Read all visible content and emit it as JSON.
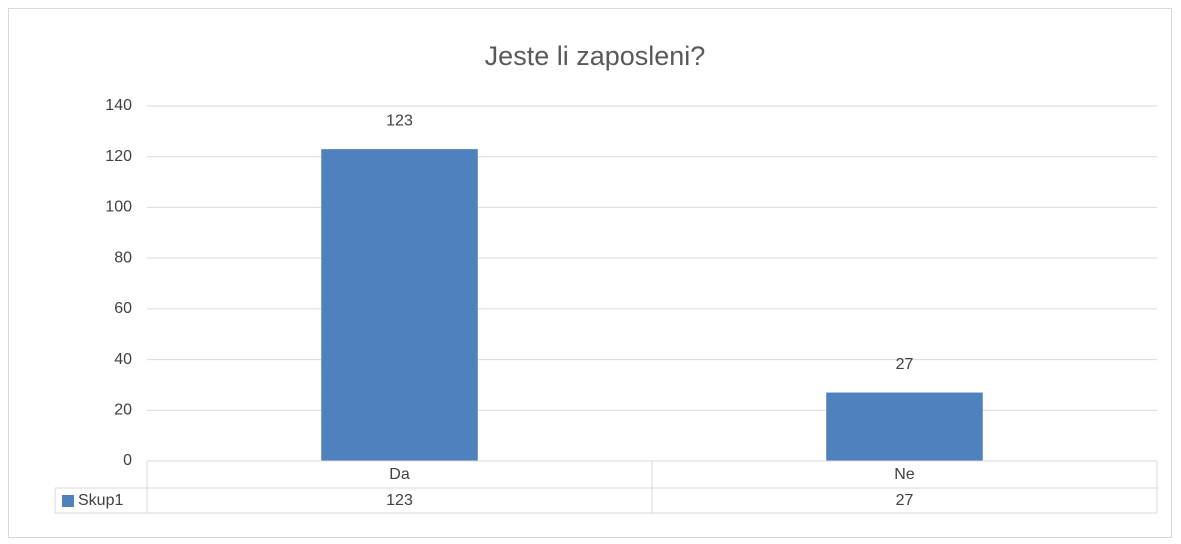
{
  "chart_data": {
    "type": "bar",
    "title": "Jeste li zaposleni?",
    "categories": [
      "Da",
      "Ne"
    ],
    "series": [
      {
        "name": "Skup1",
        "color": "#4f81bd",
        "values": [
          123,
          27
        ]
      }
    ],
    "ylim": [
      0,
      140
    ],
    "yticks": [
      0,
      20,
      40,
      60,
      80,
      100,
      120,
      140
    ],
    "grid": true,
    "data_labels": true,
    "data_table": true
  }
}
